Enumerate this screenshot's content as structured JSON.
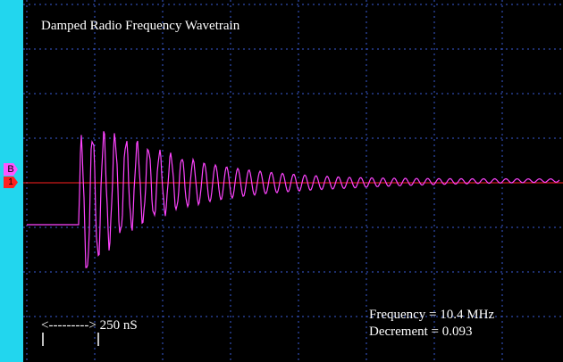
{
  "title": "Damped Radio Frequency Wavetrain",
  "readout": {
    "frequency": "Frequency = 10.4 MHz",
    "decrement": "Decrement = 0.093"
  },
  "scale_label": "<---------> 250 nS",
  "channel_markers": {
    "b": "B",
    "one": "1"
  },
  "colors": {
    "trace": "#ff44ff",
    "grid": "#3a5bd6",
    "left_bar": "#22d6ee",
    "reference_line": "#ff2020",
    "background": "#000000"
  },
  "chart_data": {
    "type": "line",
    "title": "Damped Radio Frequency Wavetrain",
    "xlabel": "",
    "ylabel": "",
    "grid": true,
    "notes_printed": [
      "Frequency = 10.4 MHz",
      "Decrement = 0.093",
      "250 nS"
    ],
    "series": [
      {
        "values": []
      }
    ]
  }
}
